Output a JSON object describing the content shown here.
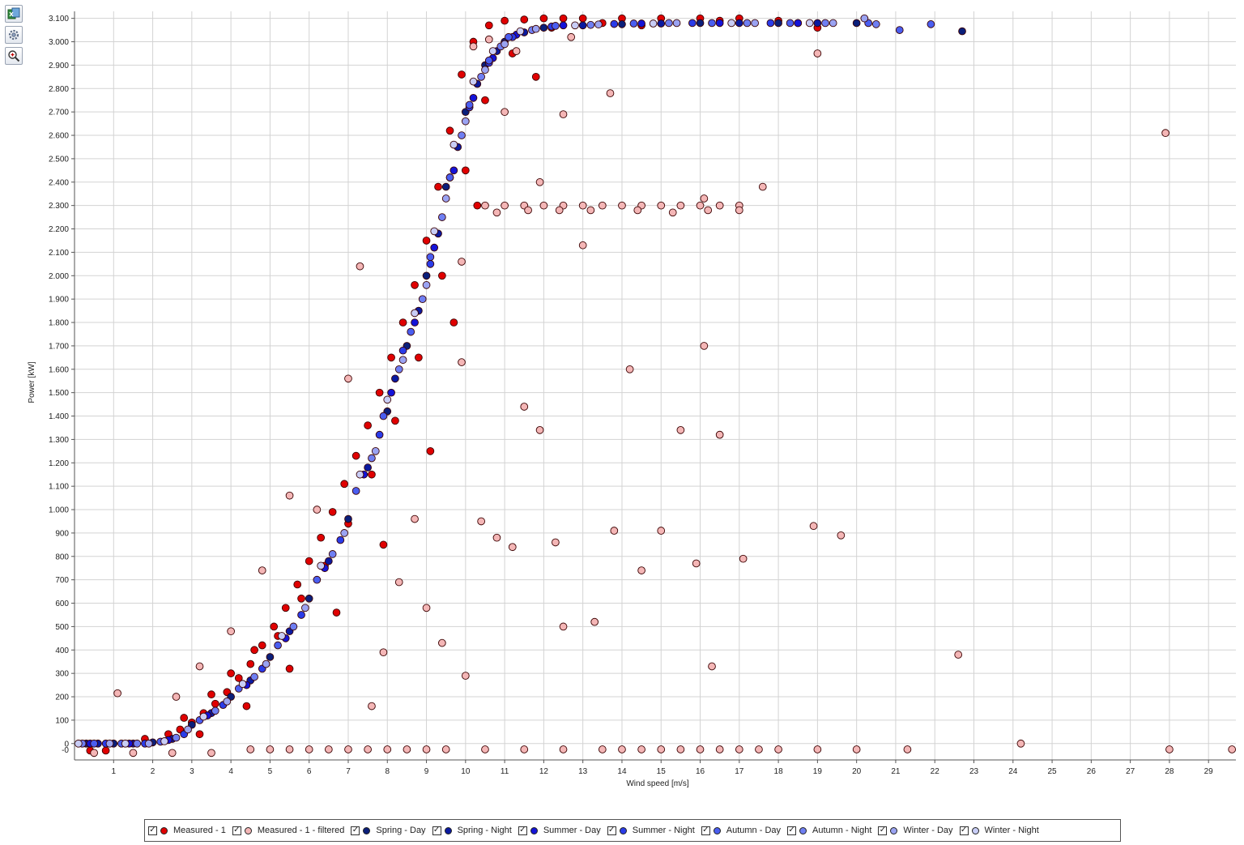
{
  "toolbar": {
    "buttons": [
      {
        "name": "export-excel-icon"
      },
      {
        "name": "settings-gear-icon"
      },
      {
        "name": "zoom-magnifier-icon"
      }
    ]
  },
  "chart_data": {
    "type": "scatter",
    "xlabel": "Wind speed [m/s]",
    "ylabel": "Power [kW]",
    "xlim": [
      0,
      29.7
    ],
    "ylim": [
      -70,
      3130
    ],
    "xticks": [
      1,
      2,
      3,
      4,
      5,
      6,
      7,
      8,
      9,
      10,
      11,
      12,
      13,
      14,
      15,
      16,
      17,
      18,
      19,
      20,
      21,
      22,
      23,
      24,
      25,
      26,
      27,
      28,
      29
    ],
    "yticks": [
      0,
      100,
      200,
      300,
      400,
      500,
      600,
      700,
      800,
      900,
      1000,
      1100,
      1200,
      1300,
      1400,
      1500,
      1600,
      1700,
      1800,
      1900,
      2000,
      2100,
      2200,
      2300,
      2400,
      2500,
      2600,
      2700,
      2800,
      2900,
      3000,
      3100
    ],
    "ytick_labels": [
      "0",
      "100",
      "200",
      "300",
      "400",
      "500",
      "600",
      "700",
      "800",
      "900",
      "1.000",
      "1.100",
      "1.200",
      "1.300",
      "1.400",
      "1.500",
      "1.600",
      "1.700",
      "1.800",
      "1.900",
      "2.000",
      "2.100",
      "2.200",
      "2.300",
      "2.400",
      "2.500",
      "2.600",
      "2.700",
      "2.800",
      "2.900",
      "3.000",
      "3.100"
    ],
    "extra_ytick_label": "-0",
    "grid": true,
    "legend_position": "bottom",
    "series": [
      {
        "name": "Measured - 1",
        "color": "#e00000",
        "checked": true,
        "x": [
          2.4,
          2.7,
          3.0,
          3.3,
          3.6,
          3.9,
          4.2,
          4.5,
          4.8,
          5.1,
          5.4,
          5.7,
          6.0,
          6.3,
          6.6,
          6.9,
          7.2,
          7.5,
          7.8,
          8.1,
          8.4,
          8.7,
          9.0,
          9.3,
          9.6,
          9.9,
          10.2,
          10.6,
          11.0,
          11.5,
          12.0,
          12.5,
          13.0,
          14.0,
          15.0,
          16.0,
          17.0,
          18.0,
          19.0,
          2.8,
          3.5,
          4.0,
          4.6,
          5.2,
          5.8,
          6.4,
          7.0,
          7.6,
          8.2,
          8.8,
          9.4,
          10.0,
          10.5,
          11.2,
          12.2,
          13.5,
          3.2,
          4.4,
          5.5,
          6.7,
          7.9,
          9.1,
          9.7,
          10.3,
          11.8,
          14.5,
          16.5,
          18.5,
          1.8,
          0.8,
          0.4
        ],
        "y": [
          40,
          60,
          90,
          130,
          170,
          220,
          280,
          340,
          420,
          500,
          580,
          680,
          780,
          880,
          990,
          1110,
          1230,
          1360,
          1500,
          1650,
          1800,
          1960,
          2150,
          2380,
          2620,
          2860,
          3000,
          3070,
          3090,
          3095,
          3100,
          3100,
          3100,
          3100,
          3100,
          3100,
          3100,
          3090,
          3060,
          110,
          210,
          300,
          400,
          460,
          620,
          760,
          940,
          1150,
          1380,
          1650,
          2000,
          2450,
          2750,
          2950,
          3060,
          3080,
          40,
          160,
          320,
          560,
          850,
          1250,
          1800,
          2300,
          2850,
          3070,
          3090,
          3080,
          20,
          -30,
          -30
        ]
      },
      {
        "name": "Measured - 1 - filtered",
        "color": "#f4b6b6",
        "checked": true,
        "x": [
          1.1,
          2.6,
          3.2,
          4.0,
          4.8,
          5.5,
          6.2,
          7.0,
          7.3,
          7.6,
          7.9,
          8.3,
          8.7,
          9.0,
          9.4,
          9.9,
          10.0,
          10.4,
          10.8,
          11.2,
          11.5,
          11.9,
          12.3,
          12.5,
          13.3,
          13.8,
          14.2,
          14.5,
          15.0,
          15.5,
          15.9,
          16.1,
          16.3,
          16.5,
          17.1,
          17.6,
          19.0,
          18.9,
          19.6,
          22.6,
          27.9,
          28.0,
          24.2,
          21.3,
          29.6,
          10.5,
          11.0,
          11.5,
          12.0,
          12.5,
          13.0,
          13.5,
          14.0,
          14.5,
          15.0,
          15.5,
          16.0,
          16.5,
          17.0,
          10.8,
          11.6,
          12.4,
          13.2,
          14.4,
          15.3,
          16.2,
          17.0,
          9.9,
          11.9,
          13.7,
          12.5,
          11.0,
          16.1,
          13.0,
          10.2,
          10.6,
          11.3,
          12.7,
          14.0,
          15.0,
          16.0,
          17.0,
          18.0,
          19.0,
          20.0,
          5.0,
          6.0,
          7.0,
          8.0,
          9.0,
          9.5,
          10.5,
          11.5,
          12.5,
          13.5,
          14.5,
          15.5,
          16.5,
          17.5,
          0.5,
          1.5,
          2.5,
          3.5,
          4.5,
          5.5,
          6.5,
          7.5,
          8.5
        ],
        "y": [
          215,
          200,
          330,
          480,
          740,
          1060,
          1000,
          1560,
          2040,
          160,
          390,
          690,
          960,
          580,
          430,
          1630,
          290,
          950,
          880,
          840,
          1440,
          1340,
          860,
          500,
          520,
          910,
          1600,
          740,
          910,
          1340,
          770,
          1700,
          330,
          1320,
          790,
          2380,
          2950,
          930,
          890,
          380,
          2610,
          -25,
          0,
          -25,
          -25,
          2300,
          2300,
          2300,
          2300,
          2300,
          2300,
          2300,
          2300,
          2300,
          2300,
          2300,
          2300,
          2300,
          2300,
          2270,
          2280,
          2280,
          2280,
          2280,
          2270,
          2280,
          2280,
          2060,
          2400,
          2780,
          2690,
          2700,
          2330,
          2130,
          2980,
          3010,
          2960,
          3020,
          -25,
          -25,
          -25,
          -25,
          -25,
          -25,
          -25,
          -25,
          -25,
          -25,
          -25,
          -25,
          -25,
          -25,
          -25,
          -25,
          -25,
          -25,
          -25,
          -25,
          -25,
          -40,
          -40,
          -40,
          -40,
          -25,
          -25,
          -25,
          -25,
          -25
        ]
      },
      {
        "name": "Spring - Day",
        "color": "#0b1f7a",
        "checked": true,
        "x": [
          0.3,
          1.0,
          2.0,
          3.0,
          4.0,
          5.0,
          6.0,
          7.0,
          8.0,
          8.5,
          9.0,
          9.5,
          10.0,
          10.5,
          11.0,
          12.0,
          14.0,
          16.0,
          18.0,
          20.0,
          22.7
        ],
        "y": [
          0,
          0,
          5,
          80,
          200,
          370,
          620,
          960,
          1420,
          1700,
          2000,
          2380,
          2700,
          2900,
          3000,
          3060,
          3075,
          3080,
          3080,
          3080,
          3045
        ]
      },
      {
        "name": "Spring - Night",
        "color": "#0a1aa0",
        "checked": true,
        "x": [
          0.6,
          1.5,
          2.5,
          3.5,
          4.5,
          5.5,
          6.5,
          7.5,
          8.2,
          8.8,
          9.3,
          9.8,
          10.3,
          10.8,
          11.5,
          13.0,
          15.0,
          17.0,
          19.0
        ],
        "y": [
          0,
          0,
          20,
          130,
          270,
          480,
          780,
          1180,
          1560,
          1850,
          2180,
          2550,
          2820,
          2960,
          3040,
          3070,
          3078,
          3080,
          3080
        ]
      },
      {
        "name": "Summer - Day",
        "color": "#1414d8",
        "checked": true,
        "x": [
          0.4,
          1.4,
          2.4,
          3.4,
          4.4,
          5.4,
          6.4,
          7.4,
          8.1,
          8.7,
          9.2,
          9.7,
          10.2,
          10.7,
          11.3,
          12.5,
          14.5,
          16.5,
          18.5
        ],
        "y": [
          0,
          0,
          15,
          120,
          250,
          450,
          750,
          1150,
          1500,
          1800,
          2120,
          2450,
          2760,
          2930,
          3030,
          3070,
          3078,
          3080,
          3080
        ]
      },
      {
        "name": "Summer - Night",
        "color": "#2a3ce8",
        "checked": true,
        "x": [
          0.8,
          1.8,
          2.8,
          3.8,
          4.8,
          5.8,
          6.8,
          7.8,
          8.4,
          9.1,
          9.6,
          10.1,
          10.6,
          11.2,
          12.2,
          13.8,
          15.8,
          17.8
        ],
        "y": [
          0,
          0,
          40,
          165,
          320,
          550,
          870,
          1320,
          1680,
          2050,
          2420,
          2720,
          2910,
          3020,
          3065,
          3076,
          3080,
          3080
        ]
      },
      {
        "name": "Autumn - Day",
        "color": "#4a5ef0",
        "checked": true,
        "x": [
          0.5,
          1.2,
          2.2,
          3.2,
          4.2,
          5.2,
          6.2,
          7.2,
          7.9,
          8.6,
          9.1,
          9.6,
          10.1,
          10.6,
          11.1,
          12.3,
          14.3,
          16.3,
          18.3,
          20.3,
          21.1,
          21.9
        ],
        "y": [
          0,
          0,
          8,
          100,
          235,
          420,
          700,
          1080,
          1400,
          1760,
          2080,
          2420,
          2730,
          2920,
          3020,
          3068,
          3078,
          3080,
          3080,
          3080,
          3050,
          3075
        ]
      },
      {
        "name": "Autumn - Night",
        "color": "#6f7ff2",
        "checked": true,
        "x": [
          0.2,
          1.6,
          2.6,
          3.6,
          4.6,
          5.6,
          6.6,
          7.6,
          8.3,
          8.9,
          9.4,
          9.9,
          10.4,
          10.9,
          11.7,
          13.2,
          15.2,
          17.2,
          19.2,
          20.5
        ],
        "y": [
          0,
          0,
          25,
          140,
          285,
          500,
          810,
          1220,
          1600,
          1900,
          2250,
          2600,
          2850,
          2980,
          3050,
          3072,
          3080,
          3080,
          3080,
          3075
        ]
      },
      {
        "name": "Winter - Day",
        "color": "#9aa3f2",
        "checked": true,
        "x": [
          0.9,
          1.9,
          2.9,
          3.9,
          4.9,
          5.9,
          6.9,
          7.7,
          8.4,
          9.0,
          9.5,
          10.0,
          10.5,
          11.0,
          11.8,
          13.4,
          15.4,
          17.4,
          19.4,
          20.2
        ],
        "y": [
          0,
          0,
          60,
          180,
          340,
          580,
          900,
          1250,
          1640,
          1960,
          2330,
          2660,
          2880,
          2990,
          3055,
          3074,
          3080,
          3080,
          3080,
          3100
        ]
      },
      {
        "name": "Winter - Night",
        "color": "#c8cdf6",
        "checked": true,
        "x": [
          0.1,
          1.3,
          2.3,
          3.3,
          4.3,
          5.3,
          6.3,
          7.3,
          8.0,
          8.7,
          9.2,
          9.7,
          10.2,
          10.7,
          11.4,
          12.8,
          14.8,
          16.8,
          18.8
        ],
        "y": [
          0,
          0,
          10,
          115,
          255,
          460,
          760,
          1150,
          1470,
          1840,
          2190,
          2560,
          2830,
          2960,
          3045,
          3070,
          3078,
          3080,
          3080
        ]
      }
    ]
  }
}
